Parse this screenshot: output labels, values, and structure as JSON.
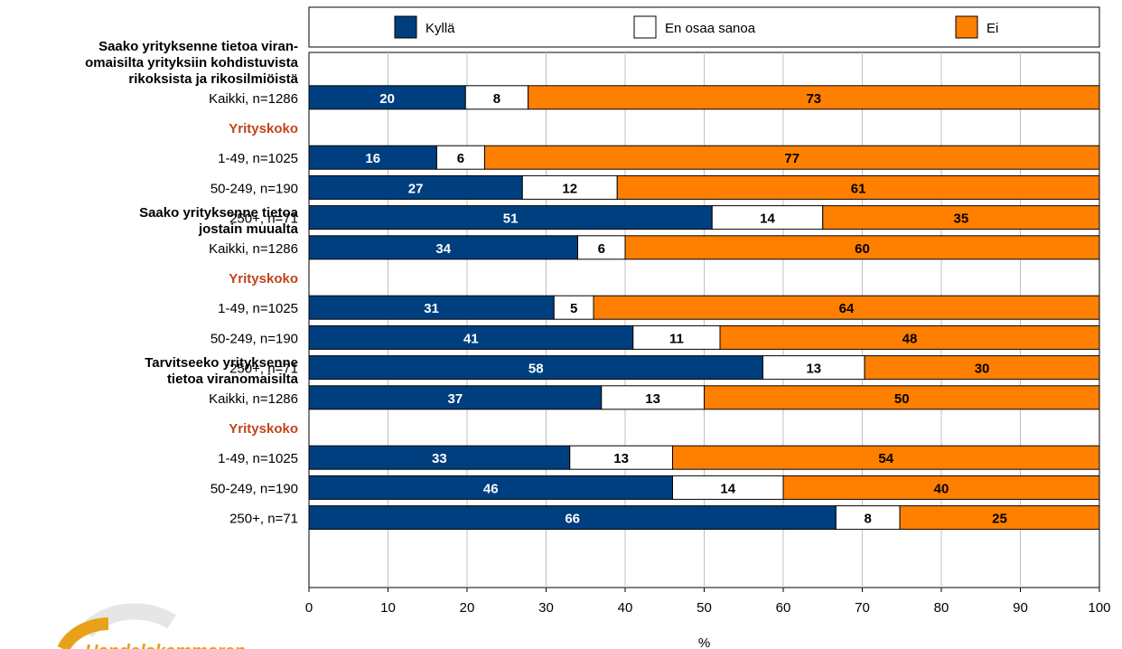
{
  "colors": {
    "kylla": "#003f7f",
    "eos": "#ffffff",
    "ei": "#ff7f00",
    "section": "#c0441a"
  },
  "chart_data": {
    "type": "bar",
    "orientation": "horizontal",
    "stacked": true,
    "xlabel": "%",
    "xlim": [
      0,
      100
    ],
    "xticks": [
      "0",
      "10",
      "20",
      "30",
      "40",
      "50",
      "60",
      "70",
      "80",
      "90",
      "100"
    ],
    "grid": true,
    "legend_position": "top",
    "legend": [
      "Kyllä",
      "En osaa sanoa",
      "Ei"
    ],
    "groups": [
      {
        "title": [
          "Saako yrityksenne tietoa viran-",
          "omaisilta yrityksiin kohdistuvista",
          "rikoksista ja rikosilmiöistä"
        ],
        "total": {
          "label": "Kaikki, n=1286",
          "values": [
            20,
            8,
            73
          ]
        },
        "section": "Yrityskoko",
        "rows": [
          {
            "label": "1-49, n=1025",
            "values": [
              16,
              6,
              77
            ]
          },
          {
            "label": "50-249, n=190",
            "values": [
              27,
              12,
              61
            ]
          },
          {
            "label": "250+, n=71",
            "values": [
              51,
              14,
              35
            ]
          }
        ]
      },
      {
        "title": [
          "Saako yrityksenne tietoa",
          "jostain muualta"
        ],
        "total": {
          "label": "Kaikki, n=1286",
          "values": [
            34,
            6,
            60
          ]
        },
        "section": "Yrityskoko",
        "rows": [
          {
            "label": "1-49, n=1025",
            "values": [
              31,
              5,
              64
            ]
          },
          {
            "label": "50-249, n=190",
            "values": [
              41,
              11,
              48
            ]
          },
          {
            "label": "250+, n=71",
            "values": [
              58,
              13,
              30
            ]
          }
        ]
      },
      {
        "title": [
          "Tarvitseeko yrityksenne",
          "tietoa viranomaisilta"
        ],
        "total": {
          "label": "Kaikki, n=1286",
          "values": [
            37,
            13,
            50
          ]
        },
        "section": "Yrityskoko",
        "rows": [
          {
            "label": "1-49, n=1025",
            "values": [
              33,
              13,
              54
            ]
          },
          {
            "label": "50-249, n=190",
            "values": [
              46,
              14,
              40
            ]
          },
          {
            "label": "250+, n=71",
            "values": [
              66,
              8,
              25
            ]
          }
        ]
      }
    ]
  },
  "logo": {
    "text": "Handelskammaren"
  }
}
